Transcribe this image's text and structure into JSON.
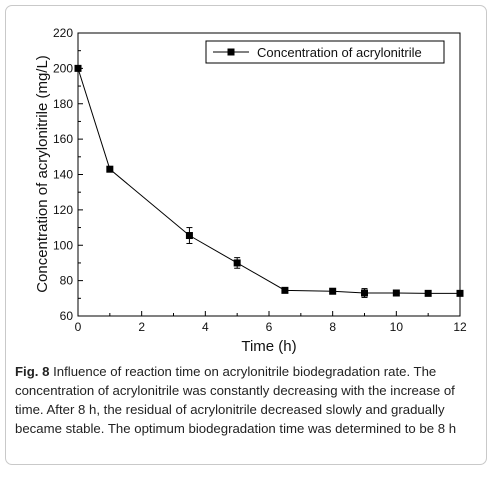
{
  "chart_data": {
    "type": "line",
    "xlabel": "Time (h)",
    "ylabel": "Concentration of acrylonitrile (mg/L)",
    "xlim": [
      0,
      12
    ],
    "ylim": [
      60,
      220
    ],
    "x_ticks": [
      0,
      2,
      4,
      6,
      8,
      10,
      12
    ],
    "y_ticks": [
      60,
      80,
      100,
      120,
      140,
      160,
      180,
      200,
      220
    ],
    "grid": false,
    "legend_position": "top-right",
    "series": [
      {
        "name": "Concentration of acrylonitrile",
        "marker": "square",
        "color": "#000000",
        "x": [
          0,
          1,
          3.5,
          5,
          6.5,
          8,
          9,
          10,
          11,
          12
        ],
        "y": [
          200,
          143,
          105.5,
          90,
          74.5,
          74,
          73,
          73,
          72.8,
          72.8
        ],
        "error": [
          0,
          0,
          4.5,
          3,
          0,
          0,
          2.5,
          0,
          0,
          0
        ]
      }
    ]
  },
  "caption": {
    "label": "Fig. 8",
    "text": "Influence of reaction time on acrylonitrile biodegradation rate. The concentration of acrylonitrile was constantly decreasing with the increase of time. After 8 h, the residual of acrylonitrile decreased slowly and gradually became stable. The optimum biodegradation time was determined to be 8 h"
  }
}
